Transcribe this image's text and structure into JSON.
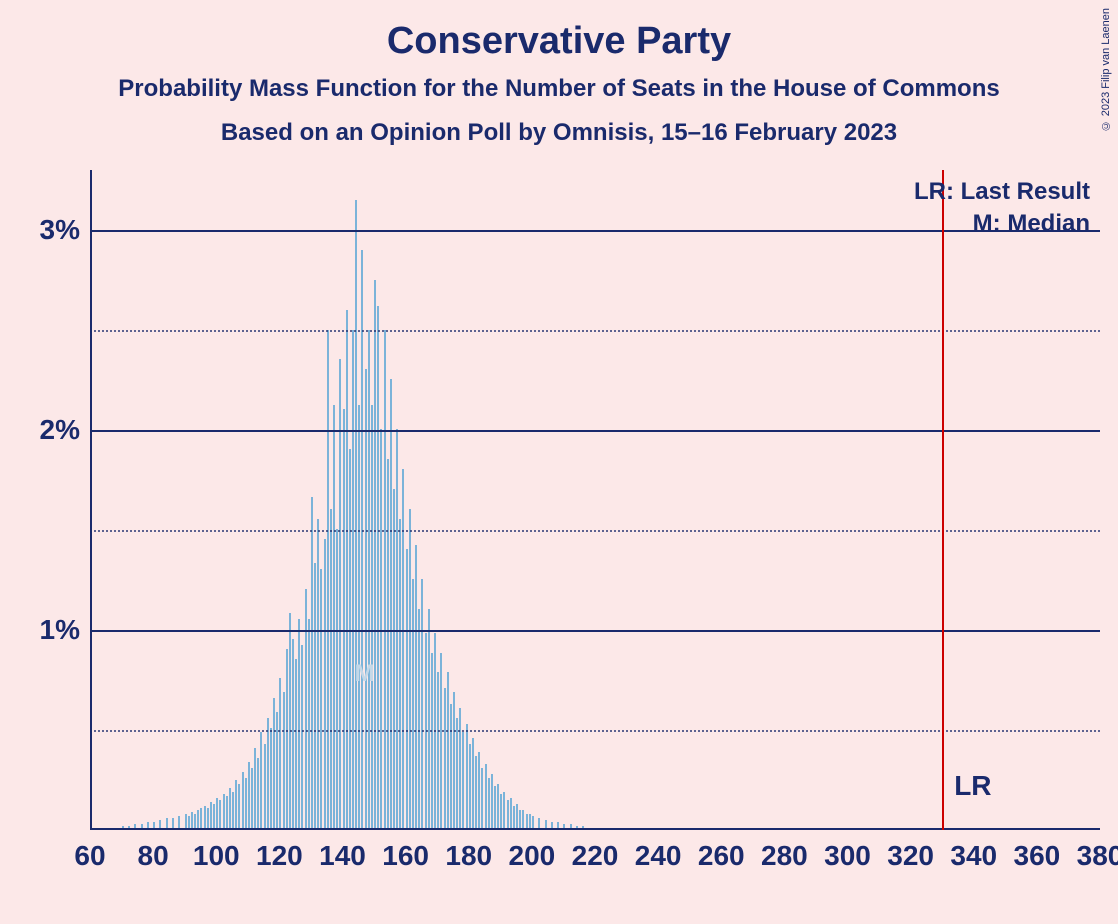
{
  "title": "Conservative Party",
  "subtitle": "Probability Mass Function for the Number of Seats in the House of Commons",
  "subsubtitle": "Based on an Opinion Poll by Omnisis, 15–16 February 2023",
  "copyright": "© 2023 Filip van Laenen",
  "chart": {
    "type": "bar",
    "background_color": "#fce8e8",
    "text_color": "#1a2a6c",
    "bar_color": "#7bb3d9",
    "lr_line_color": "#cc0000",
    "grid_color": "#1a2a6c",
    "x_min": 60,
    "x_max": 380,
    "y_min": 0,
    "y_max": 3.3,
    "y_ticks_major": [
      1,
      2,
      3
    ],
    "y_ticks_minor": [
      0.5,
      1.5,
      2.5
    ],
    "y_tick_labels": [
      "1%",
      "2%",
      "3%"
    ],
    "x_ticks": [
      60,
      80,
      100,
      120,
      140,
      160,
      180,
      200,
      220,
      240,
      260,
      280,
      300,
      320,
      340,
      360,
      380
    ],
    "lr_position": 330,
    "median_position": 147,
    "legend": {
      "lr": "LR: Last Result",
      "m": "M: Median"
    },
    "lr_label": "LR",
    "m_label": "M",
    "title_fontsize": 38,
    "subtitle_fontsize": 24,
    "axis_label_fontsize": 28,
    "bars": [
      {
        "x": 70,
        "y": 0.01
      },
      {
        "x": 72,
        "y": 0.01
      },
      {
        "x": 74,
        "y": 0.02
      },
      {
        "x": 76,
        "y": 0.02
      },
      {
        "x": 78,
        "y": 0.03
      },
      {
        "x": 80,
        "y": 0.03
      },
      {
        "x": 82,
        "y": 0.04
      },
      {
        "x": 84,
        "y": 0.05
      },
      {
        "x": 86,
        "y": 0.05
      },
      {
        "x": 88,
        "y": 0.06
      },
      {
        "x": 90,
        "y": 0.07
      },
      {
        "x": 91,
        "y": 0.06
      },
      {
        "x": 92,
        "y": 0.08
      },
      {
        "x": 93,
        "y": 0.07
      },
      {
        "x": 94,
        "y": 0.09
      },
      {
        "x": 95,
        "y": 0.1
      },
      {
        "x": 96,
        "y": 0.11
      },
      {
        "x": 97,
        "y": 0.1
      },
      {
        "x": 98,
        "y": 0.13
      },
      {
        "x": 99,
        "y": 0.12
      },
      {
        "x": 100,
        "y": 0.15
      },
      {
        "x": 101,
        "y": 0.14
      },
      {
        "x": 102,
        "y": 0.17
      },
      {
        "x": 103,
        "y": 0.16
      },
      {
        "x": 104,
        "y": 0.2
      },
      {
        "x": 105,
        "y": 0.18
      },
      {
        "x": 106,
        "y": 0.24
      },
      {
        "x": 107,
        "y": 0.22
      },
      {
        "x": 108,
        "y": 0.28
      },
      {
        "x": 109,
        "y": 0.25
      },
      {
        "x": 110,
        "y": 0.33
      },
      {
        "x": 111,
        "y": 0.3
      },
      {
        "x": 112,
        "y": 0.4
      },
      {
        "x": 113,
        "y": 0.35
      },
      {
        "x": 114,
        "y": 0.48
      },
      {
        "x": 115,
        "y": 0.42
      },
      {
        "x": 116,
        "y": 0.55
      },
      {
        "x": 117,
        "y": 0.5
      },
      {
        "x": 118,
        "y": 0.65
      },
      {
        "x": 119,
        "y": 0.58
      },
      {
        "x": 120,
        "y": 0.75
      },
      {
        "x": 121,
        "y": 0.68
      },
      {
        "x": 122,
        "y": 0.9
      },
      {
        "x": 123,
        "y": 1.08
      },
      {
        "x": 124,
        "y": 0.95
      },
      {
        "x": 125,
        "y": 0.85
      },
      {
        "x": 126,
        "y": 1.05
      },
      {
        "x": 127,
        "y": 0.92
      },
      {
        "x": 128,
        "y": 1.2
      },
      {
        "x": 129,
        "y": 1.05
      },
      {
        "x": 130,
        "y": 1.66
      },
      {
        "x": 131,
        "y": 1.33
      },
      {
        "x": 132,
        "y": 1.55
      },
      {
        "x": 133,
        "y": 1.3
      },
      {
        "x": 134,
        "y": 1.45
      },
      {
        "x": 135,
        "y": 2.5
      },
      {
        "x": 136,
        "y": 1.6
      },
      {
        "x": 137,
        "y": 2.12
      },
      {
        "x": 138,
        "y": 1.5
      },
      {
        "x": 139,
        "y": 2.35
      },
      {
        "x": 140,
        "y": 2.1
      },
      {
        "x": 141,
        "y": 2.6
      },
      {
        "x": 142,
        "y": 1.9
      },
      {
        "x": 143,
        "y": 2.5
      },
      {
        "x": 144,
        "y": 3.15
      },
      {
        "x": 145,
        "y": 2.12
      },
      {
        "x": 146,
        "y": 2.9
      },
      {
        "x": 147,
        "y": 2.3
      },
      {
        "x": 148,
        "y": 2.5
      },
      {
        "x": 149,
        "y": 2.12
      },
      {
        "x": 150,
        "y": 2.75
      },
      {
        "x": 151,
        "y": 2.62
      },
      {
        "x": 152,
        "y": 2.0
      },
      {
        "x": 153,
        "y": 2.5
      },
      {
        "x": 154,
        "y": 1.85
      },
      {
        "x": 155,
        "y": 2.25
      },
      {
        "x": 156,
        "y": 1.7
      },
      {
        "x": 157,
        "y": 2.0
      },
      {
        "x": 158,
        "y": 1.55
      },
      {
        "x": 159,
        "y": 1.8
      },
      {
        "x": 160,
        "y": 1.4
      },
      {
        "x": 161,
        "y": 1.6
      },
      {
        "x": 162,
        "y": 1.25
      },
      {
        "x": 163,
        "y": 1.42
      },
      {
        "x": 164,
        "y": 1.1
      },
      {
        "x": 165,
        "y": 1.25
      },
      {
        "x": 166,
        "y": 0.98
      },
      {
        "x": 167,
        "y": 1.1
      },
      {
        "x": 168,
        "y": 0.88
      },
      {
        "x": 169,
        "y": 0.98
      },
      {
        "x": 170,
        "y": 0.78
      },
      {
        "x": 171,
        "y": 0.88
      },
      {
        "x": 172,
        "y": 0.7
      },
      {
        "x": 173,
        "y": 0.78
      },
      {
        "x": 174,
        "y": 0.62
      },
      {
        "x": 175,
        "y": 0.68
      },
      {
        "x": 176,
        "y": 0.55
      },
      {
        "x": 177,
        "y": 0.6
      },
      {
        "x": 178,
        "y": 0.48
      },
      {
        "x": 179,
        "y": 0.52
      },
      {
        "x": 180,
        "y": 0.42
      },
      {
        "x": 181,
        "y": 0.45
      },
      {
        "x": 182,
        "y": 0.36
      },
      {
        "x": 183,
        "y": 0.38
      },
      {
        "x": 184,
        "y": 0.3
      },
      {
        "x": 185,
        "y": 0.32
      },
      {
        "x": 186,
        "y": 0.25
      },
      {
        "x": 187,
        "y": 0.27
      },
      {
        "x": 188,
        "y": 0.21
      },
      {
        "x": 189,
        "y": 0.22
      },
      {
        "x": 190,
        "y": 0.17
      },
      {
        "x": 191,
        "y": 0.18
      },
      {
        "x": 192,
        "y": 0.14
      },
      {
        "x": 193,
        "y": 0.15
      },
      {
        "x": 194,
        "y": 0.11
      },
      {
        "x": 195,
        "y": 0.12
      },
      {
        "x": 196,
        "y": 0.09
      },
      {
        "x": 197,
        "y": 0.09
      },
      {
        "x": 198,
        "y": 0.07
      },
      {
        "x": 199,
        "y": 0.07
      },
      {
        "x": 200,
        "y": 0.06
      },
      {
        "x": 202,
        "y": 0.05
      },
      {
        "x": 204,
        "y": 0.04
      },
      {
        "x": 206,
        "y": 0.03
      },
      {
        "x": 208,
        "y": 0.03
      },
      {
        "x": 210,
        "y": 0.02
      },
      {
        "x": 212,
        "y": 0.02
      },
      {
        "x": 214,
        "y": 0.01
      },
      {
        "x": 216,
        "y": 0.01
      }
    ]
  }
}
